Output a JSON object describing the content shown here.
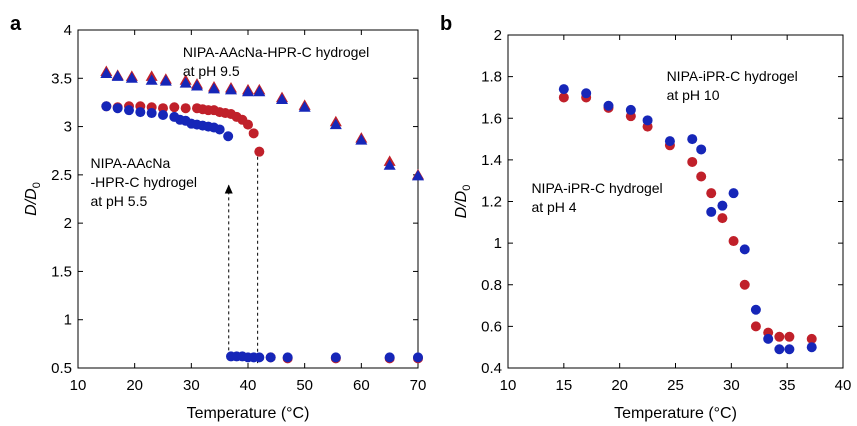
{
  "colors": {
    "red": "#c0202a",
    "blue": "#1626b8"
  },
  "chart_data": [
    {
      "panel_label": "a",
      "type": "scatter",
      "xlabel": "Temperature (°C)",
      "ylabel_main": "D/D",
      "ylabel_sub": "0",
      "xlim": [
        10,
        70
      ],
      "ylim": [
        0.5,
        4
      ],
      "xticks": [
        "10",
        "20",
        "30",
        "40",
        "50",
        "60",
        "70"
      ],
      "yticks": [
        "0.5",
        "1",
        "1.5",
        "2",
        "2.5",
        "3",
        "3.5",
        "4"
      ],
      "annotations": [
        {
          "lines": [
            "NIPA-AAcNa-HPR-C hydrogel",
            "at pH 9.5"
          ],
          "x": 28.5,
          "y": 3.72
        },
        {
          "lines": [
            "NIPA-AAcNa",
            "-HPR-C hydrogel",
            "at pH 5.5"
          ],
          "x": 12.2,
          "y": 2.57
        }
      ],
      "arrows": [
        {
          "x": 36.6,
          "from": 0.62,
          "to": 2.4,
          "direction": "up"
        },
        {
          "x": 41.7,
          "from": 2.75,
          "to": 0.55,
          "direction": "down"
        }
      ],
      "series": [
        {
          "color": "red",
          "marker": "triangle",
          "x": [
            15,
            17,
            19.5,
            23,
            25.5,
            29,
            31,
            34,
            37,
            40,
            42,
            46,
            50,
            55.5,
            60,
            65,
            70
          ],
          "y": [
            3.57,
            3.53,
            3.52,
            3.52,
            3.49,
            3.48,
            3.44,
            3.41,
            3.4,
            3.38,
            3.38,
            3.3,
            3.22,
            3.05,
            2.88,
            2.64,
            2.5
          ]
        },
        {
          "color": "blue",
          "marker": "triangle",
          "x": [
            15,
            17,
            19.5,
            23,
            25.5,
            29,
            31,
            34,
            37,
            40,
            42,
            46,
            50,
            55.5,
            60,
            65,
            70
          ],
          "y": [
            3.55,
            3.52,
            3.5,
            3.48,
            3.47,
            3.45,
            3.42,
            3.39,
            3.38,
            3.36,
            3.36,
            3.28,
            3.2,
            3.02,
            2.86,
            2.6,
            2.49
          ]
        },
        {
          "color": "red",
          "marker": "circle",
          "x": [
            15,
            17,
            19,
            21,
            23,
            25,
            27,
            29,
            31,
            32,
            33,
            34,
            35,
            36,
            37,
            38,
            39,
            40,
            41,
            42,
            44,
            47,
            55.5,
            65,
            70
          ],
          "y": [
            3.21,
            3.2,
            3.21,
            3.21,
            3.2,
            3.19,
            3.2,
            3.19,
            3.19,
            3.18,
            3.17,
            3.17,
            3.15,
            3.14,
            3.13,
            3.1,
            3.07,
            3.02,
            2.93,
            2.74,
            0.61,
            0.6,
            0.6,
            0.6,
            0.6
          ]
        },
        {
          "color": "blue",
          "marker": "circle",
          "x": [
            15,
            17,
            19,
            21,
            23,
            25,
            27,
            28,
            29,
            30,
            31,
            32,
            33,
            34,
            35,
            36.5,
            37,
            38,
            39,
            40,
            41,
            42,
            44,
            47,
            55.5,
            65,
            70
          ],
          "y": [
            3.21,
            3.19,
            3.17,
            3.15,
            3.14,
            3.12,
            3.1,
            3.07,
            3.06,
            3.03,
            3.02,
            3.01,
            3.0,
            2.99,
            2.97,
            2.9,
            0.62,
            0.62,
            0.62,
            0.61,
            0.61,
            0.61,
            0.61,
            0.61,
            0.61,
            0.61,
            0.61
          ]
        }
      ]
    },
    {
      "panel_label": "b",
      "type": "scatter",
      "xlabel": "Temperature (°C)",
      "ylabel_main": "D/D",
      "ylabel_sub": "0",
      "xlim": [
        10,
        40
      ],
      "ylim": [
        0.4,
        2
      ],
      "xticks": [
        "10",
        "15",
        "20",
        "25",
        "30",
        "35",
        "40"
      ],
      "yticks": [
        "0.4",
        "0.6",
        "0.8",
        "1",
        "1.2",
        "1.4",
        "1.6",
        "1.8",
        "2"
      ],
      "annotations": [
        {
          "lines": [
            "NIPA-iPR-C hydrogel",
            "at pH 10"
          ],
          "x": 24.2,
          "y": 1.78
        },
        {
          "lines": [
            "NIPA-iPR-C hydrogel",
            "at pH 4"
          ],
          "x": 12.1,
          "y": 1.24
        }
      ],
      "arrows": [],
      "series": [
        {
          "color": "red",
          "marker": "circle",
          "x": [
            15,
            17,
            19,
            21,
            22.5,
            24.5,
            26.5,
            27.3,
            28.2,
            29.2,
            30.2,
            31.2,
            32.2,
            33.3,
            34.3,
            35.2,
            37.2
          ],
          "y": [
            1.7,
            1.7,
            1.65,
            1.61,
            1.56,
            1.47,
            1.39,
            1.32,
            1.24,
            1.12,
            1.01,
            0.8,
            0.6,
            0.57,
            0.55,
            0.55,
            0.54
          ]
        },
        {
          "color": "blue",
          "marker": "circle",
          "x": [
            15,
            17,
            19,
            21,
            22.5,
            24.5,
            26.5,
            27.3,
            28.2,
            29.2,
            30.2,
            31.2,
            32.2,
            33.3,
            34.3,
            35.2,
            37.2
          ],
          "y": [
            1.74,
            1.72,
            1.66,
            1.64,
            1.59,
            1.49,
            1.5,
            1.45,
            1.15,
            1.18,
            1.24,
            0.97,
            0.68,
            0.54,
            0.49,
            0.49,
            0.5
          ]
        }
      ]
    }
  ]
}
